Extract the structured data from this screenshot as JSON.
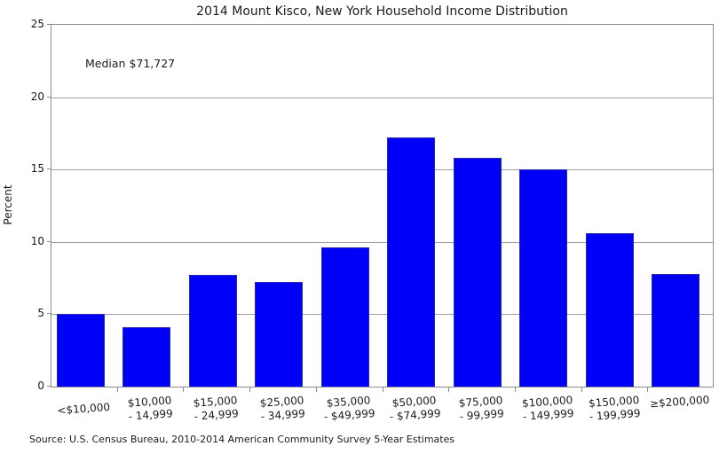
{
  "chart": {
    "title": "2014 Mount Kisco, New York Household Income Distribution",
    "annotation": "Median $71,727",
    "ylabel": "Percent",
    "source": "Source: U.S. Census Bureau, 2010-2014 American Community Survey 5-Year Estimates"
  },
  "chart_data": {
    "type": "bar",
    "title": "2014 Mount Kisco, New York Household Income Distribution",
    "annotation": "Median $71,727",
    "categories": [
      "<$10,000",
      "$10,000 - 14,999",
      "$15,000 - 24,999",
      "$25,000 - 34,999",
      "$35,000 - $49,999",
      "$50,000 - $74,999",
      "$75,000 - 99,999",
      "$100,000 - 149,999",
      "$150,000 - 199,999",
      "≥$200,000"
    ],
    "category_lines": [
      [
        "<$10,000"
      ],
      [
        "$10,000",
        "- 14,999"
      ],
      [
        "$15,000",
        "- 24,999"
      ],
      [
        "$25,000",
        "- 34,999"
      ],
      [
        "$35,000",
        "- $49,999"
      ],
      [
        "$50,000",
        "- $74,999"
      ],
      [
        "$75,000",
        "- 99,999"
      ],
      [
        "$100,000",
        "- 149,999"
      ],
      [
        "$150,000",
        "- 199,999"
      ],
      [
        "≥$200,000"
      ]
    ],
    "values": [
      5.0,
      4.1,
      7.7,
      7.2,
      9.6,
      17.2,
      15.8,
      15.0,
      10.6,
      7.8
    ],
    "xlabel": "",
    "ylabel": "Percent",
    "ylim": [
      0,
      25
    ],
    "yticks": [
      0,
      5,
      10,
      15,
      20,
      25
    ],
    "grid": true,
    "legend": false,
    "bar_color": "#0000fa",
    "bar_edge_color": "#2a2aad",
    "gridline_color": "#9e9e9e",
    "source": "Source: U.S. Census Bureau, 2010-2014 American Community Survey 5-Year Estimates"
  }
}
